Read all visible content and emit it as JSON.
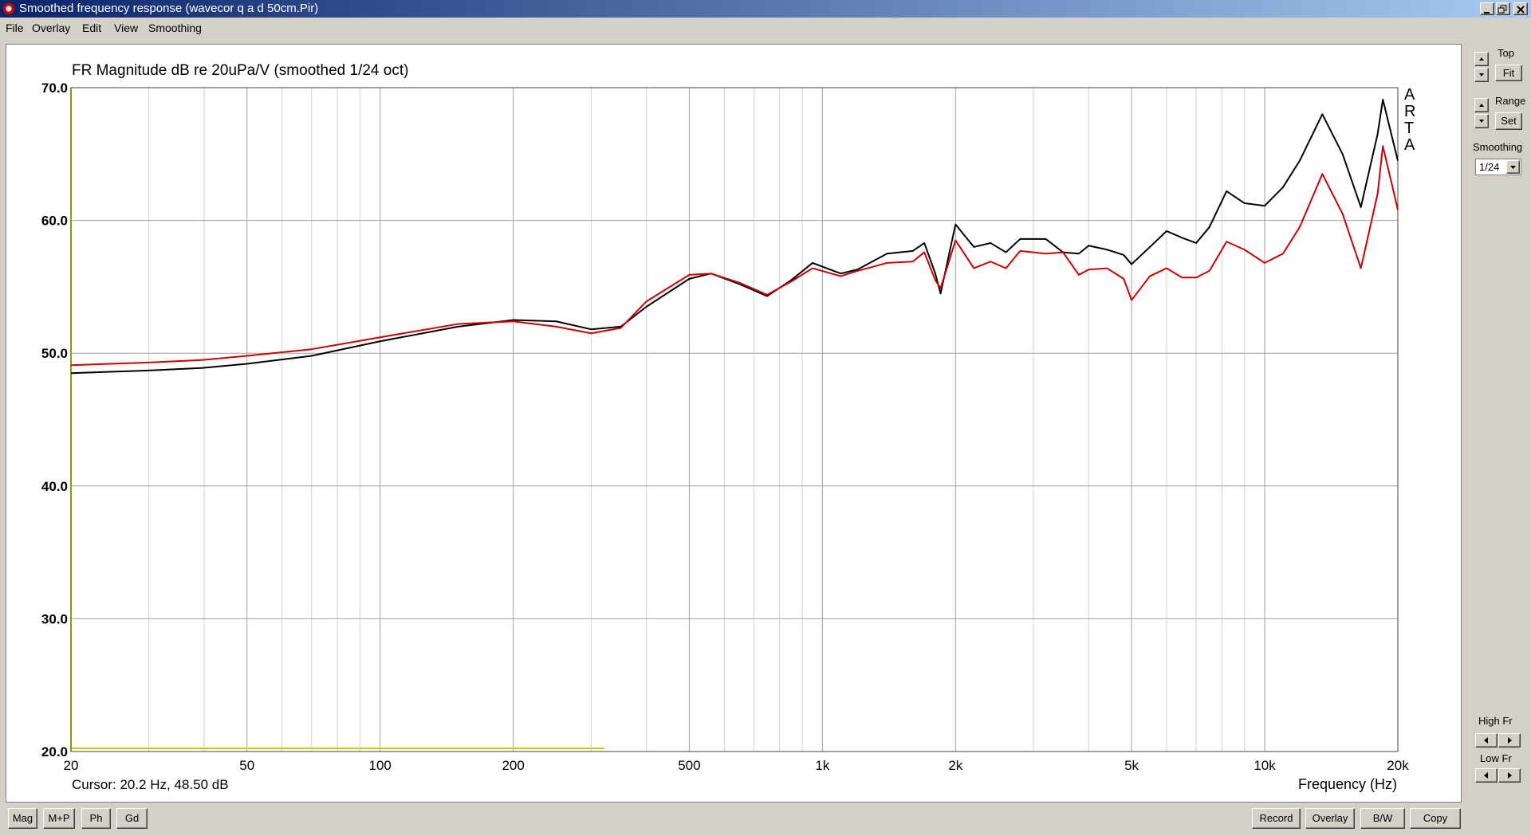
{
  "window": {
    "title": "Smoothed frequency response (wavecor q a d 50cm.Pir)"
  },
  "menu": [
    "File",
    "Overlay",
    "Edit",
    "View",
    "Smoothing"
  ],
  "chart_data": {
    "type": "line",
    "title": "FR Magnitude dB re 20uPa/V (smoothed 1/24 oct)",
    "xlabel": "Frequency (Hz)",
    "cursor": "Cursor: 20.2 Hz, 48.50 dB",
    "brand": "ARTA",
    "xscale": "log",
    "xlim": [
      20,
      20000
    ],
    "ylim": [
      20,
      70
    ],
    "xticks": [
      20,
      50,
      100,
      200,
      500,
      {
        "value": 1000,
        "label": "1k"
      },
      {
        "value": 2000,
        "label": "2k"
      },
      {
        "value": 5000,
        "label": "5k"
      },
      {
        "value": 10000,
        "label": "10k"
      },
      {
        "value": 20000,
        "label": "20k"
      }
    ],
    "xgrid_minor": [
      30,
      40,
      60,
      70,
      80,
      90,
      300,
      400,
      600,
      700,
      800,
      900,
      3000,
      4000,
      6000,
      7000,
      8000,
      9000
    ],
    "yticks": [
      {
        "value": 20,
        "label": "20.0"
      },
      {
        "value": 30,
        "label": "30.0"
      },
      {
        "value": 40,
        "label": "40.0"
      },
      {
        "value": 50,
        "label": "50.0"
      },
      {
        "value": 60,
        "label": "60.0"
      },
      {
        "value": 70,
        "label": "70.0"
      }
    ],
    "grid": true,
    "x": [
      20,
      30,
      40,
      50,
      70,
      100,
      150,
      200,
      250,
      300,
      350,
      400,
      500,
      560,
      650,
      750,
      850,
      950,
      1100,
      1200,
      1400,
      1600,
      1700,
      1800,
      1850,
      2000,
      2200,
      2400,
      2600,
      2800,
      3200,
      3500,
      3800,
      4000,
      4400,
      4800,
      5000,
      5500,
      6000,
      6500,
      7000,
      7500,
      8200,
      9000,
      10000,
      11000,
      12000,
      13500,
      15000,
      16500,
      18000,
      18500,
      20000
    ],
    "series": [
      {
        "color": "#000000",
        "values": [
          48.5,
          48.7,
          48.9,
          49.2,
          49.8,
          50.9,
          52.0,
          52.5,
          52.4,
          51.8,
          52.0,
          53.5,
          55.6,
          56.0,
          55.2,
          54.3,
          55.5,
          56.8,
          56.0,
          56.3,
          57.5,
          57.7,
          58.3,
          56.0,
          54.5,
          59.7,
          58.0,
          58.3,
          57.6,
          58.6,
          58.6,
          57.6,
          57.5,
          58.1,
          57.8,
          57.4,
          56.7,
          58.0,
          59.2,
          58.7,
          58.3,
          59.5,
          62.2,
          61.3,
          61.1,
          62.5,
          64.5,
          68.0,
          65.0,
          61.0,
          66.5,
          69.1,
          64.5
        ]
      },
      {
        "color": "#cc0000",
        "values": [
          49.1,
          49.3,
          49.5,
          49.8,
          50.3,
          51.2,
          52.2,
          52.4,
          52.0,
          51.5,
          51.9,
          53.9,
          55.9,
          56.0,
          55.3,
          54.4,
          55.4,
          56.4,
          55.8,
          56.2,
          56.8,
          56.9,
          57.6,
          55.5,
          54.9,
          58.5,
          56.4,
          56.9,
          56.4,
          57.7,
          57.5,
          57.6,
          55.9,
          56.3,
          56.4,
          55.6,
          54.0,
          55.8,
          56.4,
          55.7,
          55.7,
          56.2,
          58.4,
          57.8,
          56.8,
          57.5,
          59.5,
          63.5,
          60.5,
          56.4,
          62.0,
          65.6,
          60.8
        ]
      }
    ]
  },
  "side_panel": {
    "top": "Top",
    "fit": "Fit",
    "range": "Range",
    "set": "Set",
    "smoothing": "Smoothing",
    "smoothing_value": "1/24",
    "high_fr": "High Fr",
    "low_fr": "Low Fr"
  },
  "bottom_left": [
    "Mag",
    "M+P",
    "Ph",
    "Gd"
  ],
  "bottom_right": [
    "Record",
    "Overlay",
    "B/W",
    "Copy"
  ]
}
